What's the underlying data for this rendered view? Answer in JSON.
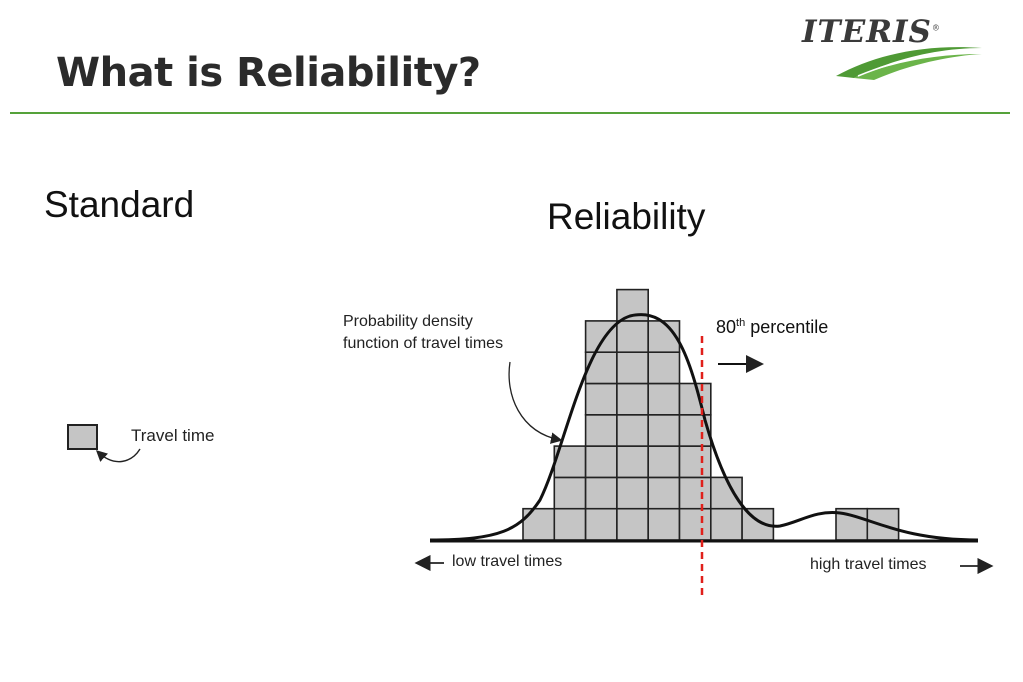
{
  "slide": {
    "title": "What is Reliability?",
    "logo": {
      "text": "ITERIS",
      "mark": "®",
      "accent_color": "#55a23a"
    },
    "accent_color": "#55a23a"
  },
  "standard": {
    "heading": "Standard",
    "box_caption": "Travel time"
  },
  "reliability": {
    "heading": "Reliability",
    "pdf_label_line1": "Probability density",
    "pdf_label_line2": "function of travel times",
    "low_label": "low travel times",
    "high_label": "high travel times",
    "percentile_number": "80",
    "percentile_suffix": "th",
    "percentile_word": "percentile",
    "percentile_line_color": "#e0201b",
    "histogram_counts": [
      1,
      3,
      7,
      8,
      7,
      5,
      2,
      1,
      0,
      0,
      1,
      1
    ]
  }
}
